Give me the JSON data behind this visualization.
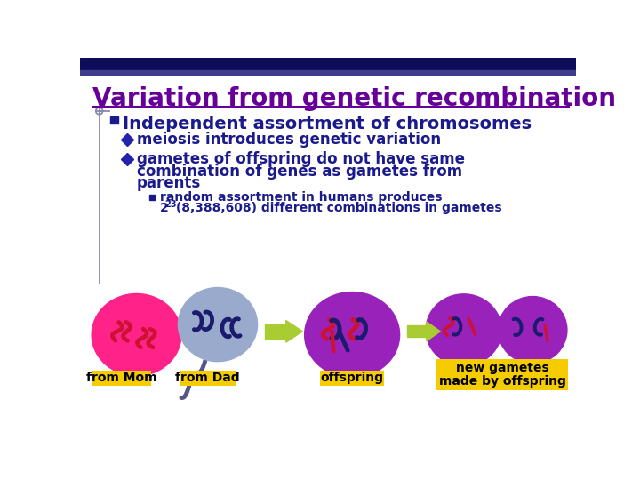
{
  "bg_color": "#ffffff",
  "header_bar_color1": "#0d0d5c",
  "header_bar_color2": "#3d3d8c",
  "title_text": "Variation from genetic recombination",
  "title_color": "#660099",
  "bullet1_text": "Independent assortment of chromosomes",
  "bullet1_color": "#1a1a8c",
  "sub_bullet1": "meiosis introduces genetic variation",
  "sub_bullet2_line1": "gametes of offspring do not have same",
  "sub_bullet2_line2": "combination of genes as gametes from",
  "sub_bullet2_line3": "parents",
  "sub_sub_bullet1": "random assortment in humans produces",
  "sub_sub_bullet2_base": "2",
  "sub_sub_bullet2_sup": "23",
  "sub_sub_bullet2_rest": " (8,388,608) different combinations in gametes",
  "text_color": "#1a1a8c",
  "diamond_color": "#2222aa",
  "sq_bullet_color": "#1a1a8c",
  "label_bg": "#f5cc00",
  "label_text_color": "#000000",
  "cell_mom_color": "#ff2288",
  "cell_dad_color": "#99aacc",
  "cell_offspring_color": "#9922bb",
  "cell_gamete_color": "#9922bb",
  "chrom_red": "#cc1133",
  "chrom_dark": "#1a1a6e",
  "arrow_color": "#aacc33",
  "sperm_color": "#555588",
  "vline_color": "#8888aa"
}
